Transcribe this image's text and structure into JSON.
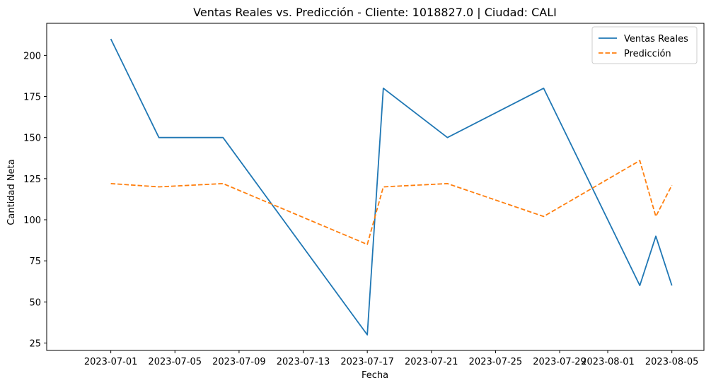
{
  "chart_data": {
    "type": "line",
    "title": "Ventas Reales vs. Predicción - Cliente: 1018827.0 | Ciudad: CALI",
    "xlabel": "Fecha",
    "ylabel": "Cantidad Neta",
    "x_type": "date",
    "xlim": [
      "2023-06-27",
      "2023-08-07"
    ],
    "ylim": [
      20.5,
      219.5
    ],
    "x_ticks": [
      "2023-07-01",
      "2023-07-05",
      "2023-07-09",
      "2023-07-13",
      "2023-07-17",
      "2023-07-21",
      "2023-07-25",
      "2023-07-29",
      "2023-08-01",
      "2023-08-05"
    ],
    "y_ticks": [
      25,
      50,
      75,
      100,
      125,
      150,
      175,
      200
    ],
    "grid": false,
    "legend_position": "top-right",
    "series": [
      {
        "name": "Ventas Reales",
        "color": "#1f77b4",
        "style": "solid",
        "x": [
          "2023-07-01",
          "2023-07-04",
          "2023-07-08",
          "2023-07-17",
          "2023-07-18",
          "2023-07-22",
          "2023-07-28",
          "2023-08-03",
          "2023-08-04",
          "2023-08-05"
        ],
        "values": [
          210,
          150,
          150,
          30,
          180,
          150,
          180,
          60,
          90,
          60
        ]
      },
      {
        "name": "Predicción",
        "color": "#ff7f0e",
        "style": "dashed",
        "x": [
          "2023-07-01",
          "2023-07-04",
          "2023-07-08",
          "2023-07-17",
          "2023-07-18",
          "2023-07-22",
          "2023-07-28",
          "2023-08-03",
          "2023-08-04",
          "2023-08-05"
        ],
        "values": [
          122,
          120,
          122,
          85,
          120,
          122,
          102,
          136,
          102,
          121
        ]
      }
    ]
  }
}
